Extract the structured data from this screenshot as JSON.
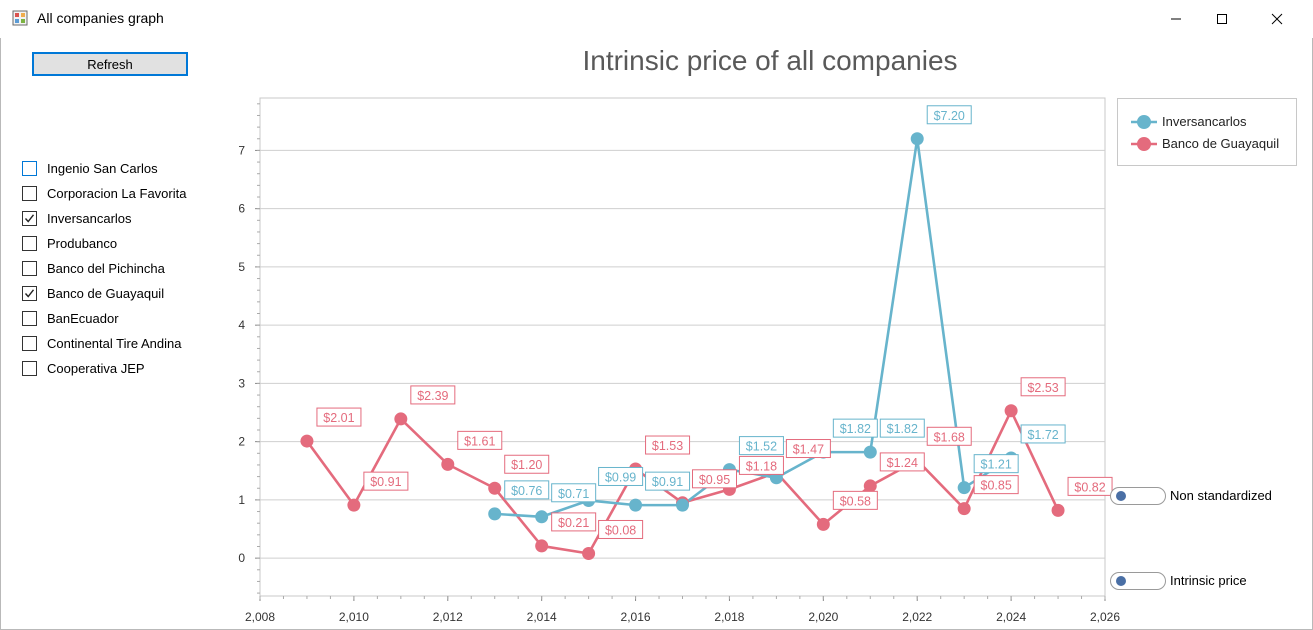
{
  "window": {
    "title": "All companies graph"
  },
  "toolbar": {
    "refresh_label": "Refresh"
  },
  "companies": [
    {
      "label": "Ingenio San Carlos",
      "checked": false
    },
    {
      "label": "Corporacion La Favorita",
      "checked": false
    },
    {
      "label": "Inversancarlos",
      "checked": true
    },
    {
      "label": "Produbanco",
      "checked": false
    },
    {
      "label": "Banco del Pichincha",
      "checked": false
    },
    {
      "label": "Banco de Guayaquil",
      "checked": true
    },
    {
      "label": "BanEcuador",
      "checked": false
    },
    {
      "label": "Continental Tire Andina",
      "checked": false
    },
    {
      "label": "Cooperativa JEP",
      "checked": false
    }
  ],
  "toggles": {
    "standardize_label": "Non standardized",
    "price_label": "Intrinsic price"
  },
  "colors": {
    "inversancarlos": "#67b4cc",
    "guayaquil": "#e46b7d",
    "focus_border": "#0078d7"
  },
  "chart_data": {
    "type": "line",
    "title": "Intrinsic price of all companies",
    "xlabel": "",
    "ylabel": "",
    "xlim": [
      2008,
      2026
    ],
    "ylim": [
      -0.65,
      7.9
    ],
    "x_ticks": [
      "2,008",
      "2,010",
      "2,012",
      "2,014",
      "2,016",
      "2,018",
      "2,020",
      "2,022",
      "2,024",
      "2,026"
    ],
    "y_ticks": [
      "0",
      "1",
      "2",
      "3",
      "4",
      "5",
      "6",
      "7"
    ],
    "grid": true,
    "legend_position": "top-right",
    "series": [
      {
        "name": "Inversancarlos",
        "color": "#67b4cc",
        "points": [
          {
            "x": 2013,
            "y": 0.76,
            "label": "$0.76"
          },
          {
            "x": 2014,
            "y": 0.71,
            "label": "$0.71"
          },
          {
            "x": 2015,
            "y": 0.99,
            "label": "$0.99"
          },
          {
            "x": 2016,
            "y": 0.91,
            "label": "$0.91"
          },
          {
            "x": 2017,
            "y": 0.91,
            "label": ""
          },
          {
            "x": 2018,
            "y": 1.52,
            "label": "$1.52"
          },
          {
            "x": 2019,
            "y": 1.38,
            "label": ""
          },
          {
            "x": 2020,
            "y": 1.82,
            "label": "$1.82"
          },
          {
            "x": 2021,
            "y": 1.82,
            "label": "$1.82"
          },
          {
            "x": 2022,
            "y": 7.2,
            "label": "$7.20"
          },
          {
            "x": 2023,
            "y": 1.21,
            "label": "$1.21"
          },
          {
            "x": 2024,
            "y": 1.72,
            "label": "$1.72"
          }
        ]
      },
      {
        "name": "Banco de Guayaquil",
        "color": "#e46b7d",
        "points": [
          {
            "x": 2009,
            "y": 2.01,
            "label": "$2.01"
          },
          {
            "x": 2010,
            "y": 0.91,
            "label": "$0.91"
          },
          {
            "x": 2011,
            "y": 2.39,
            "label": "$2.39"
          },
          {
            "x": 2012,
            "y": 1.61,
            "label": "$1.61"
          },
          {
            "x": 2013,
            "y": 1.2,
            "label": "$1.20"
          },
          {
            "x": 2014,
            "y": 0.21,
            "label": "$0.21"
          },
          {
            "x": 2015,
            "y": 0.08,
            "label": "$0.08"
          },
          {
            "x": 2016,
            "y": 1.53,
            "label": "$1.53"
          },
          {
            "x": 2017,
            "y": 0.95,
            "label": "$0.95"
          },
          {
            "x": 2018,
            "y": 1.18,
            "label": "$1.18"
          },
          {
            "x": 2019,
            "y": 1.47,
            "label": "$1.47"
          },
          {
            "x": 2020,
            "y": 0.58,
            "label": "$0.58"
          },
          {
            "x": 2021,
            "y": 1.24,
            "label": "$1.24"
          },
          {
            "x": 2022,
            "y": 1.68,
            "label": "$1.68"
          },
          {
            "x": 2023,
            "y": 0.85,
            "label": "$0.85"
          },
          {
            "x": 2024,
            "y": 2.53,
            "label": "$2.53"
          },
          {
            "x": 2025,
            "y": 0.82,
            "label": "$0.82"
          }
        ]
      }
    ]
  }
}
